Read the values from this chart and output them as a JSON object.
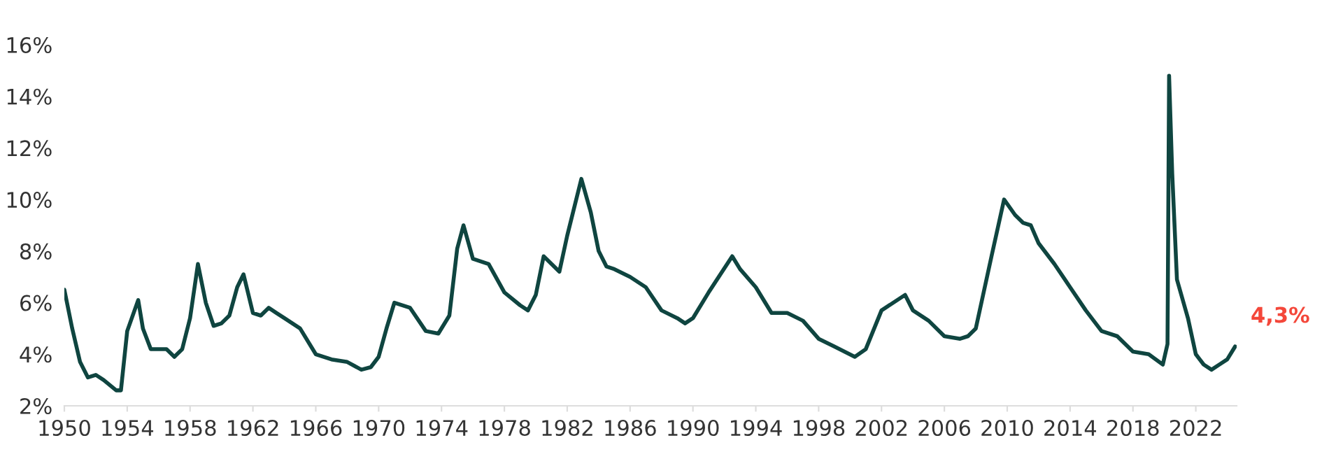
{
  "chart_data": {
    "type": "line",
    "series": [
      {
        "color": "#0f4540",
        "x": [
          1950.0,
          1950.5,
          1951.0,
          1951.5,
          1952.0,
          1952.5,
          1953.3,
          1953.6,
          1954.0,
          1954.7,
          1955.0,
          1955.5,
          1956.5,
          1957.0,
          1957.5,
          1958.0,
          1958.5,
          1959.0,
          1959.5,
          1960.0,
          1960.5,
          1961.0,
          1961.4,
          1962.0,
          1962.5,
          1963.0,
          1963.5,
          1964.0,
          1965.0,
          1966.0,
          1967.0,
          1968.0,
          1968.9,
          1969.5,
          1970.0,
          1970.5,
          1971.0,
          1972.0,
          1973.0,
          1973.8,
          1974.5,
          1975.0,
          1975.4,
          1976.0,
          1977.0,
          1978.0,
          1979.0,
          1979.5,
          1980.0,
          1980.5,
          1981.0,
          1981.5,
          1982.0,
          1982.9,
          1983.5,
          1984.0,
          1984.5,
          1985.0,
          1986.0,
          1987.0,
          1988.0,
          1989.0,
          1989.5,
          1990.0,
          1991.0,
          1992.5,
          1993.0,
          1994.0,
          1995.0,
          1996.0,
          1997.0,
          1998.0,
          1999.0,
          2000.3,
          2001.0,
          2002.0,
          2003.5,
          2004.0,
          2005.0,
          2006.0,
          2007.0,
          2007.5,
          2008.0,
          2009.0,
          2009.8,
          2010.5,
          2011.0,
          2011.5,
          2012.0,
          2013.0,
          2014.0,
          2015.0,
          2016.0,
          2017.0,
          2018.0,
          2019.0,
          2019.9,
          2020.2,
          2020.3,
          2020.5,
          2020.8,
          2021.5,
          2022.0,
          2022.5,
          2023.0,
          2023.5,
          2024.0,
          2024.5
        ],
        "values": [
          6.5,
          5.0,
          3.7,
          3.1,
          3.2,
          3.0,
          2.6,
          2.6,
          4.9,
          6.1,
          5.0,
          4.2,
          4.2,
          3.9,
          4.2,
          5.4,
          7.5,
          6.0,
          5.1,
          5.2,
          5.5,
          6.6,
          7.1,
          5.6,
          5.5,
          5.8,
          5.6,
          5.4,
          5.0,
          4.0,
          3.8,
          3.7,
          3.4,
          3.5,
          3.9,
          5.0,
          6.0,
          5.8,
          4.9,
          4.8,
          5.5,
          8.1,
          9.0,
          7.7,
          7.5,
          6.4,
          5.9,
          5.7,
          6.3,
          7.8,
          7.5,
          7.2,
          8.6,
          10.8,
          9.5,
          8.0,
          7.4,
          7.3,
          7.0,
          6.6,
          5.7,
          5.4,
          5.2,
          5.4,
          6.4,
          7.8,
          7.3,
          6.6,
          5.6,
          5.6,
          5.3,
          4.6,
          4.3,
          3.9,
          4.2,
          5.7,
          6.3,
          5.7,
          5.3,
          4.7,
          4.6,
          4.7,
          5.0,
          7.8,
          10.0,
          9.4,
          9.1,
          9.0,
          8.3,
          7.5,
          6.6,
          5.7,
          4.9,
          4.7,
          4.1,
          4.0,
          3.6,
          4.4,
          14.8,
          11.0,
          6.9,
          5.4,
          4.0,
          3.6,
          3.4,
          3.6,
          3.8,
          4.3
        ]
      }
    ],
    "xlim": [
      1950,
      2024.6
    ],
    "xticks": [
      1950,
      1954,
      1958,
      1962,
      1966,
      1970,
      1974,
      1978,
      1982,
      1986,
      1990,
      1994,
      1998,
      2002,
      2006,
      2010,
      2014,
      2018,
      2022
    ],
    "ylim": [
      2,
      16
    ],
    "yticks": [
      {
        "value": 2,
        "label": "2%"
      },
      {
        "value": 4,
        "label": "4%"
      },
      {
        "value": 6,
        "label": "6%"
      },
      {
        "value": 8,
        "label": "8%"
      },
      {
        "value": 10,
        "label": "10%"
      },
      {
        "value": 12,
        "label": "12%"
      },
      {
        "value": 14,
        "label": "14%"
      },
      {
        "value": 16,
        "label": "16%"
      }
    ],
    "grid": false,
    "annotations": [
      {
        "text": "4,3%",
        "x": 2024.5,
        "y": 4.3
      }
    ]
  }
}
